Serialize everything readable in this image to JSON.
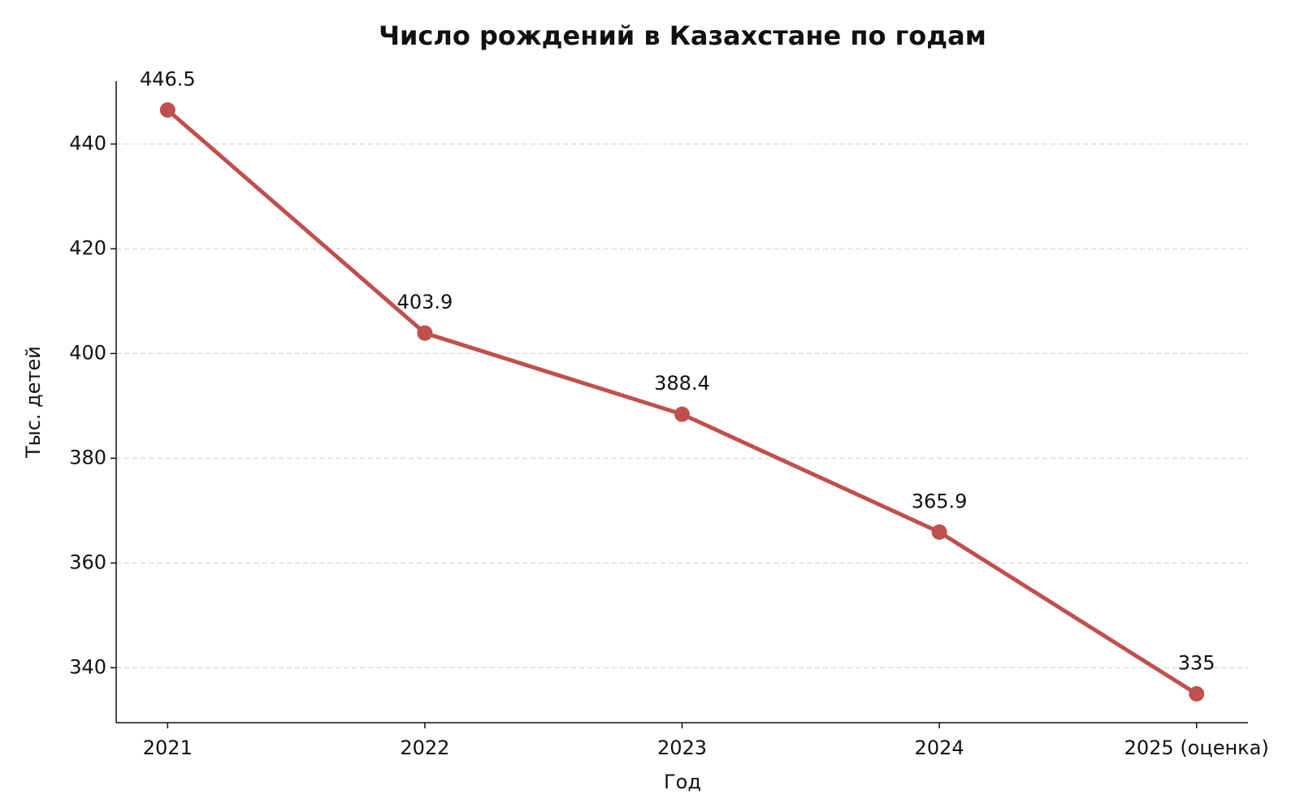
{
  "chart_data": {
    "type": "line",
    "title": "Число рождений в Казахстане по годам",
    "x_label": "Год",
    "y_label": "Тыс. детей",
    "categories": [
      "2021",
      "2022",
      "2023",
      "2024",
      "2025 (оценка)"
    ],
    "values": [
      446.5,
      403.9,
      388.4,
      365.9,
      335
    ],
    "color": "#c0504d",
    "ylim": [
      329.5,
      452
    ],
    "yticks": [
      340,
      360,
      380,
      400,
      420,
      440
    ],
    "grid": true
  }
}
